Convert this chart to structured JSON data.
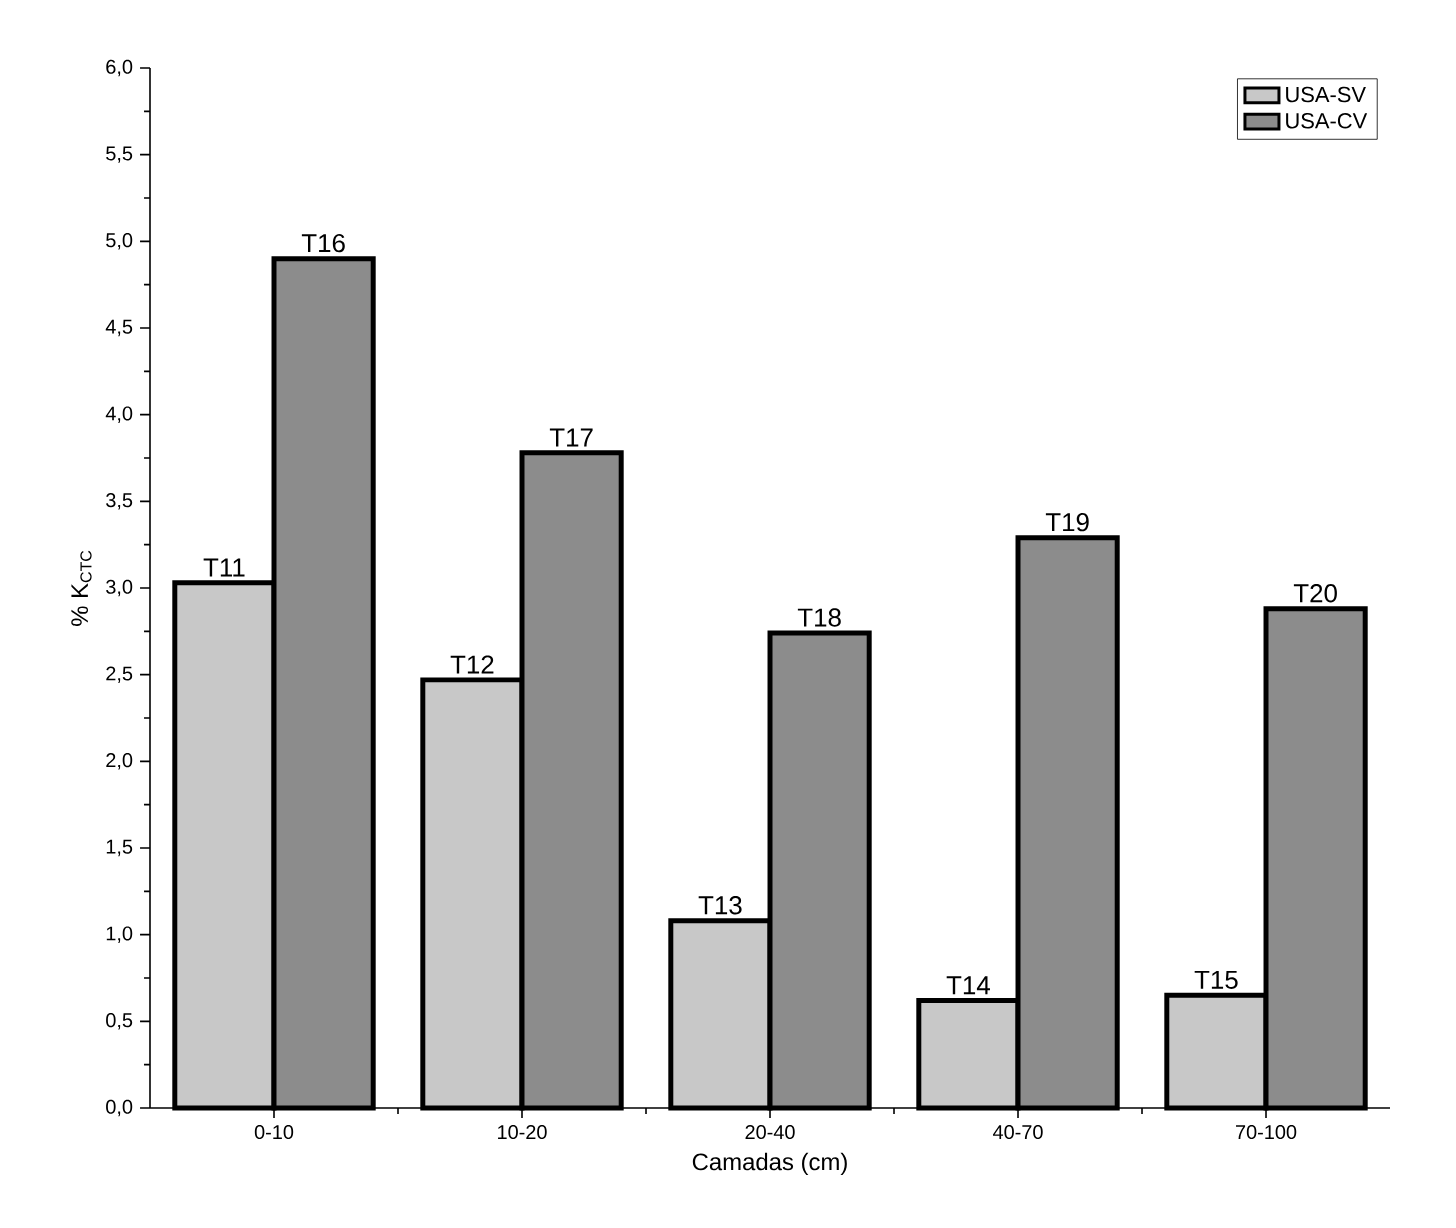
{
  "chart_data": {
    "type": "bar",
    "xlabel": "Camadas (cm)",
    "ylabel": "% K$_{CTC}$",
    "categories": [
      "0-10",
      "10-20",
      "20-40",
      "40-70",
      "70-100"
    ],
    "series": [
      {
        "name": "USA-SV",
        "color": "#c8c8c8",
        "values": [
          3.03,
          2.47,
          1.08,
          0.62,
          0.65
        ],
        "value_labels": [
          "T11",
          "T12",
          "T13",
          "T14",
          "T15"
        ]
      },
      {
        "name": "USA-CV",
        "color": "#8c8c8c",
        "values": [
          4.9,
          3.78,
          2.74,
          3.29,
          2.88
        ],
        "value_labels": [
          "T16",
          "T17",
          "T18",
          "T19",
          "T20"
        ]
      }
    ],
    "ylim": [
      0,
      6
    ],
    "yticks": [
      {
        "value": 0,
        "label": "0,0"
      },
      {
        "value": 0.5,
        "label": "0,5"
      },
      {
        "value": 1,
        "label": "1,0"
      },
      {
        "value": 1.5,
        "label": "1,5"
      },
      {
        "value": 2,
        "label": "2,0"
      },
      {
        "value": 2.5,
        "label": "2,5"
      },
      {
        "value": 3,
        "label": "3,0"
      },
      {
        "value": 3.5,
        "label": "3,5"
      },
      {
        "value": 4,
        "label": "4,0"
      },
      {
        "value": 4.5,
        "label": "4,5"
      },
      {
        "value": 5,
        "label": "5,0"
      },
      {
        "value": 5.5,
        "label": "5,5"
      },
      {
        "value": 6,
        "label": "6,0"
      }
    ],
    "legend": "top right",
    "grid": false
  }
}
